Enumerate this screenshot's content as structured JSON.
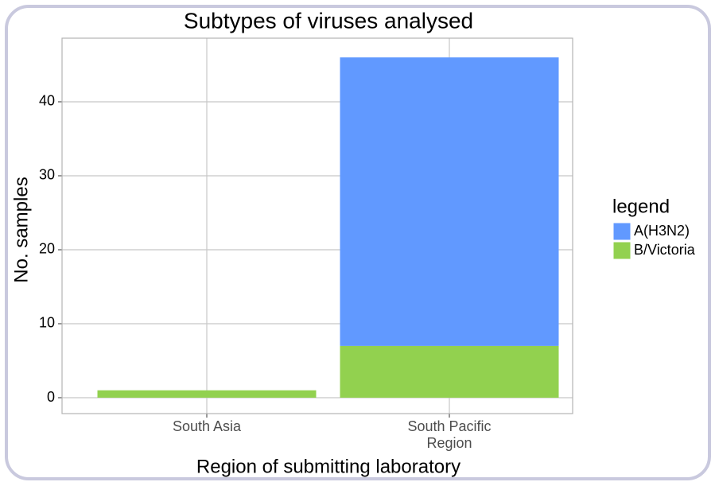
{
  "chart_data": {
    "type": "stacked_bar",
    "title": "Subtypes of viruses analysed",
    "x_label": "Region of submitting laboratory",
    "y_label": "No. samples",
    "categories": [
      "South Asia",
      "South Pacific\nRegion"
    ],
    "series": [
      {
        "name": "B/Victoria",
        "color": "#92d14f",
        "values": [
          1,
          7
        ]
      },
      {
        "name": "A(H3N2)",
        "color": "#6199ff",
        "values": [
          0,
          39
        ]
      }
    ],
    "legend_title": "legend",
    "ylim": [
      -2.15,
      48.6
    ],
    "yticks": [
      0,
      10,
      20,
      30,
      40
    ],
    "grid": true
  }
}
